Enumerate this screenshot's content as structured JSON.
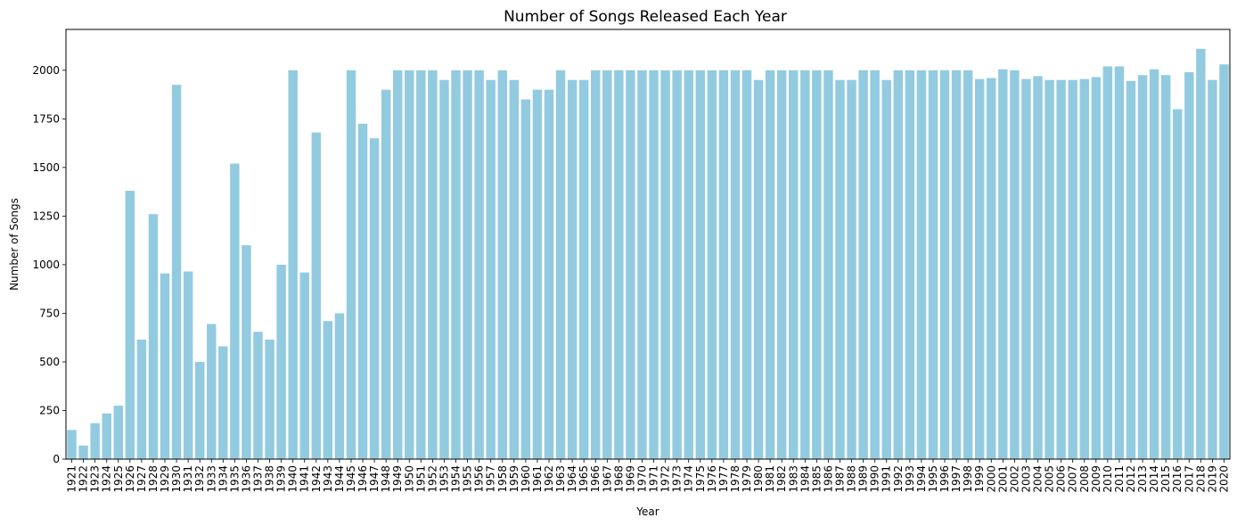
{
  "chart_data": {
    "type": "bar",
    "title": "Number of Songs Released Each Year",
    "xlabel": "Year",
    "ylabel": "Number of Songs",
    "ylim": [
      0,
      2210
    ],
    "yticks": [
      0,
      250,
      500,
      750,
      1000,
      1250,
      1500,
      1750,
      2000
    ],
    "bar_color": "#92cbdf",
    "grid": false,
    "categories": [
      "1921",
      "1922",
      "1923",
      "1924",
      "1925",
      "1926",
      "1927",
      "1928",
      "1929",
      "1930",
      "1931",
      "1932",
      "1933",
      "1934",
      "1935",
      "1936",
      "1937",
      "1938",
      "1939",
      "1940",
      "1941",
      "1942",
      "1943",
      "1944",
      "1945",
      "1946",
      "1947",
      "1948",
      "1949",
      "1950",
      "1951",
      "1952",
      "1953",
      "1954",
      "1955",
      "1956",
      "1957",
      "1958",
      "1959",
      "1960",
      "1961",
      "1962",
      "1963",
      "1964",
      "1965",
      "1966",
      "1967",
      "1968",
      "1969",
      "1970",
      "1971",
      "1972",
      "1973",
      "1974",
      "1975",
      "1976",
      "1977",
      "1978",
      "1979",
      "1980",
      "1981",
      "1982",
      "1983",
      "1984",
      "1985",
      "1986",
      "1987",
      "1988",
      "1989",
      "1990",
      "1991",
      "1992",
      "1993",
      "1994",
      "1995",
      "1996",
      "1997",
      "1998",
      "1999",
      "2000",
      "2001",
      "2002",
      "2003",
      "2004",
      "2005",
      "2006",
      "2007",
      "2008",
      "2009",
      "2010",
      "2011",
      "2012",
      "2013",
      "2014",
      "2015",
      "2016",
      "2017",
      "2018",
      "2019",
      "2020"
    ],
    "values": [
      150,
      70,
      185,
      235,
      275,
      1380,
      615,
      1260,
      955,
      1925,
      965,
      500,
      695,
      580,
      1520,
      1100,
      655,
      615,
      1000,
      2000,
      960,
      1680,
      710,
      750,
      2000,
      1725,
      1650,
      1900,
      2000,
      2000,
      2000,
      2000,
      1950,
      2000,
      2000,
      2000,
      1950,
      2000,
      1950,
      1850,
      1900,
      1900,
      2000,
      1950,
      1950,
      2000,
      2000,
      2000,
      2000,
      2000,
      2000,
      2000,
      2000,
      2000,
      2000,
      2000,
      2000,
      2000,
      2000,
      1950,
      2000,
      2000,
      2000,
      2000,
      2000,
      2000,
      1950,
      1950,
      2000,
      2000,
      1950,
      2000,
      2000,
      2000,
      2000,
      2000,
      2000,
      2000,
      1955,
      1960,
      2005,
      2000,
      1955,
      1970,
      1950,
      1950,
      1950,
      1955,
      1965,
      2020,
      2020,
      1945,
      1975,
      2005,
      1975,
      1800,
      1990,
      2110,
      1950,
      2030
    ]
  }
}
